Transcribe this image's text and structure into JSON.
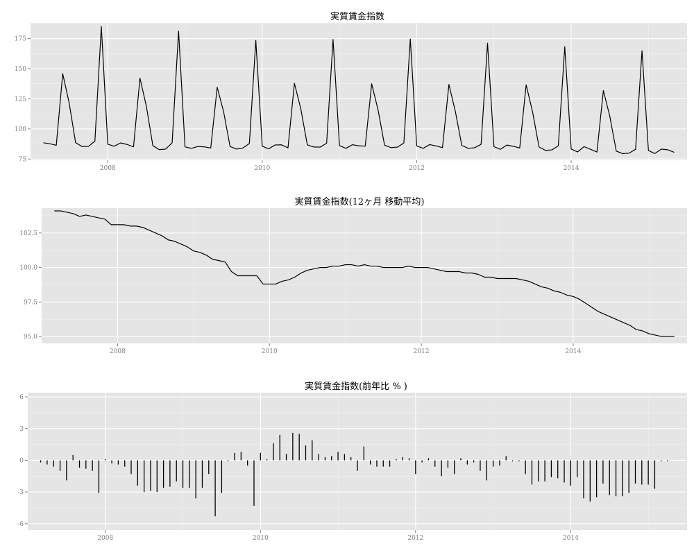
{
  "chart_data": [
    {
      "type": "line",
      "title": "実質賃金指数",
      "xlabel": "",
      "ylabel": "",
      "x_start": "2007-03",
      "x_end": "2015-04",
      "xlim": [
        "2007-01",
        "2015-07"
      ],
      "ylim": [
        74,
        188
      ],
      "yticks": [
        75,
        100,
        125,
        150,
        175
      ],
      "ytick_labels": [
        "75",
        "100",
        "125",
        "150",
        "175"
      ],
      "xticks": [
        "2008-01",
        "2010-01",
        "2012-01",
        "2014-01"
      ],
      "xtick_labels": [
        "2008",
        "2010",
        "2012",
        "2014"
      ],
      "grid": true,
      "values": [
        88.5,
        87.7,
        86.4,
        145.9,
        121.6,
        88.6,
        85.4,
        85.5,
        89.9,
        185.0,
        87.3,
        85.7,
        88.4,
        87.1,
        85.1,
        142.2,
        118.7,
        86.2,
        82.8,
        83.3,
        88.5,
        181.2,
        85.1,
        83.9,
        85.4,
        85.1,
        84.2,
        134.6,
        114.2,
        85.4,
        83.3,
        84.2,
        87.9,
        173.5,
        85.6,
        83.5,
        86.7,
        86.8,
        84.3,
        137.9,
        116.4,
        86.8,
        85.0,
        84.9,
        88.1,
        174.3,
        86.2,
        83.9,
        86.9,
        86.0,
        85.7,
        137.5,
        115.6,
        86.5,
        84.5,
        84.9,
        88.3,
        174.7,
        85.9,
        83.9,
        87.0,
        85.9,
        84.5,
        136.9,
        114.6,
        86.3,
        83.9,
        84.4,
        87.2,
        171.2,
        85.3,
        83.1,
        86.6,
        85.6,
        84.2,
        136.6,
        114.1,
        85.1,
        82.2,
        82.6,
        86.0,
        168.2,
        83.3,
        80.9,
        85.3,
        83.1,
        80.8,
        131.8,
        110.4,
        81.6,
        79.5,
        79.9,
        83.1,
        164.9,
        82.1,
        79.6,
        83.2,
        82.7,
        80.6
      ]
    },
    {
      "type": "line",
      "title": "実質賃金指数(12ヶ月 移動平均)",
      "xlabel": "",
      "ylabel": "",
      "x_start": "2007-03",
      "x_end": "2015-04",
      "xlim": [
        "2007-01",
        "2015-07"
      ],
      "ylim": [
        94.5,
        104.3
      ],
      "yticks": [
        95.0,
        97.5,
        100.0,
        102.5
      ],
      "ytick_labels": [
        "95.0",
        "97.5",
        "100.0",
        "102.5"
      ],
      "xticks": [
        "2008-01",
        "2010-01",
        "2012-01",
        "2014-01"
      ],
      "xtick_labels": [
        "2008",
        "2010",
        "2012",
        "2014"
      ],
      "grid": true,
      "values": [
        104.1,
        104.1,
        104.0,
        103.9,
        103.7,
        103.8,
        103.7,
        103.6,
        103.5,
        103.1,
        103.1,
        103.1,
        103.0,
        103.0,
        102.9,
        102.7,
        102.5,
        102.3,
        102.0,
        101.9,
        101.7,
        101.5,
        101.2,
        101.1,
        100.9,
        100.6,
        100.5,
        100.4,
        99.7,
        99.4,
        99.4,
        99.4,
        99.4,
        98.8,
        98.8,
        98.8,
        99.0,
        99.1,
        99.3,
        99.6,
        99.8,
        99.9,
        100.0,
        100.0,
        100.1,
        100.1,
        100.2,
        100.2,
        100.1,
        100.2,
        100.1,
        100.1,
        100.0,
        100.0,
        100.0,
        100.0,
        100.1,
        100.0,
        100.0,
        100.0,
        99.9,
        99.8,
        99.7,
        99.7,
        99.7,
        99.6,
        99.6,
        99.5,
        99.3,
        99.3,
        99.2,
        99.2,
        99.2,
        99.2,
        99.1,
        99.0,
        98.8,
        98.6,
        98.5,
        98.3,
        98.2,
        98.0,
        97.9,
        97.7,
        97.4,
        97.1,
        96.8,
        96.6,
        96.4,
        96.2,
        96.0,
        95.8,
        95.5,
        95.4,
        95.2,
        95.1,
        95.0,
        95.0,
        95.0
      ]
    },
    {
      "type": "bar",
      "title": "実質賃金指数(前年比 % )",
      "xlabel": "",
      "ylabel": "",
      "x_start": "2007-03",
      "x_end": "2015-05",
      "xlim": [
        "2007-01",
        "2015-07"
      ],
      "ylim": [
        -6.6,
        6.4
      ],
      "yticks": [
        -6,
        -3,
        0,
        3,
        6
      ],
      "ytick_labels": [
        "-6",
        "-3",
        "0",
        "3",
        "6"
      ],
      "xticks": [
        "2008-01",
        "2010-01",
        "2012-01",
        "2014-01"
      ],
      "xtick_labels": [
        "2008",
        "2010",
        "2012",
        "2014"
      ],
      "grid": true,
      "values": [
        -0.2,
        -0.4,
        -0.6,
        -1.0,
        -1.9,
        0.5,
        -0.7,
        -0.8,
        -1.0,
        -3.1,
        0.1,
        -0.3,
        -0.4,
        -0.6,
        -1.3,
        -2.4,
        -3.0,
        -2.9,
        -3.0,
        -2.6,
        -2.5,
        -2.0,
        -2.6,
        -2.6,
        -3.6,
        -2.6,
        -1.3,
        -5.3,
        -3.1,
        -0.1,
        0.7,
        0.8,
        -0.5,
        -4.3,
        0.7,
        0.1,
        1.6,
        2.4,
        0.6,
        2.6,
        2.5,
        1.4,
        1.9,
        0.6,
        0.3,
        0.4,
        0.8,
        0.6,
        0.3,
        -1.0,
        1.3,
        -0.4,
        -0.6,
        -0.6,
        -0.6,
        0.1,
        0.3,
        0.2,
        -1.3,
        -0.2,
        0.2,
        -0.6,
        -1.5,
        -0.7,
        -1.3,
        0.2,
        -0.4,
        -0.2,
        -1.0,
        -1.9,
        -0.6,
        -0.5,
        0.4,
        -0.1,
        -0.1,
        -1.3,
        -2.3,
        -2.0,
        -2.0,
        -1.6,
        -1.7,
        -2.1,
        -2.4,
        -1.6,
        -3.6,
        -3.9,
        -3.5,
        -2.2,
        -3.3,
        -3.4,
        -3.4,
        -3.1,
        -2.2,
        -2.3,
        -2.3,
        -2.7,
        -0.1,
        -0.1
      ]
    }
  ]
}
